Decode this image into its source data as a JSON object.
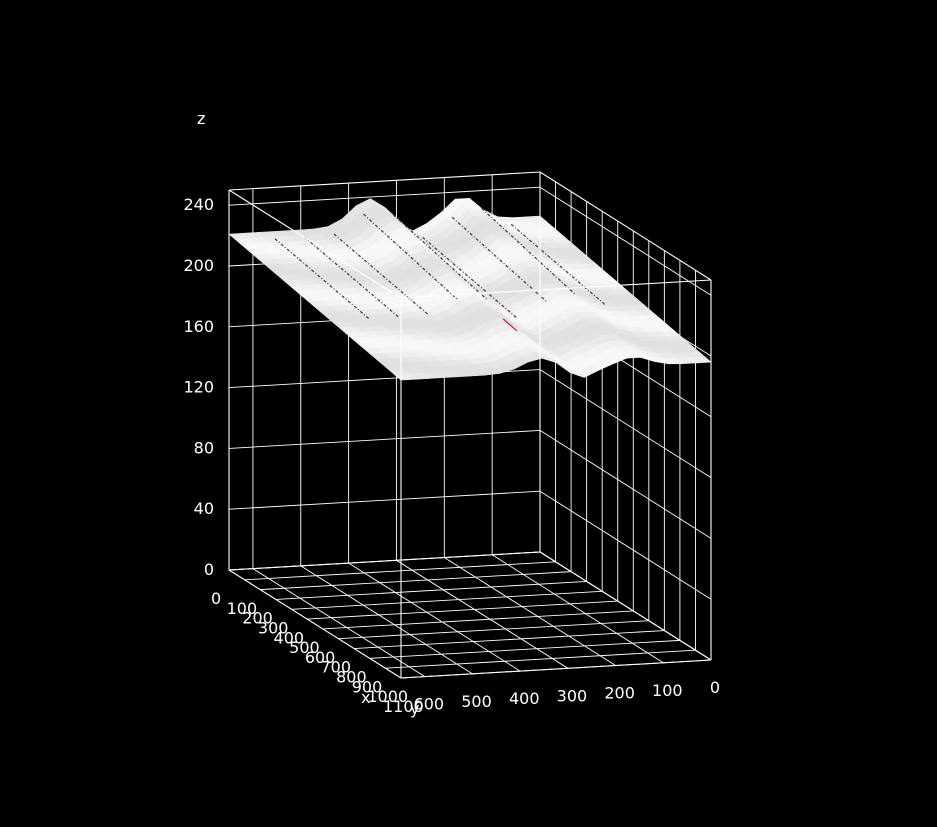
{
  "chart_data": {
    "type": "surface",
    "title": "",
    "xlabel": "x",
    "ylabel": "y",
    "zlabel": "z",
    "x_ticks": [
      "0",
      "100",
      "200",
      "300",
      "400",
      "500",
      "600",
      "700",
      "800",
      "900",
      "1000",
      "1100"
    ],
    "y_ticks": [
      "0",
      "100",
      "200",
      "300",
      "400",
      "500",
      "600"
    ],
    "z_ticks": [
      "0",
      "40",
      "80",
      "120",
      "160",
      "200",
      "240"
    ],
    "xlim": [
      0,
      1100
    ],
    "ylim": [
      0,
      650
    ],
    "zlim": [
      0,
      250
    ],
    "grid": true,
    "surface": {
      "description_values": "Surface of a scanned document page: z approx. 186-243 over the full x-y domain, highest along the x=0 edge and with ridges near y=150 and y=350",
      "z_range": [
        186,
        243
      ],
      "colors": {
        "surface": "#f4f4f4",
        "text_marks": "#444444",
        "red_contour": "#cc2222"
      }
    }
  }
}
